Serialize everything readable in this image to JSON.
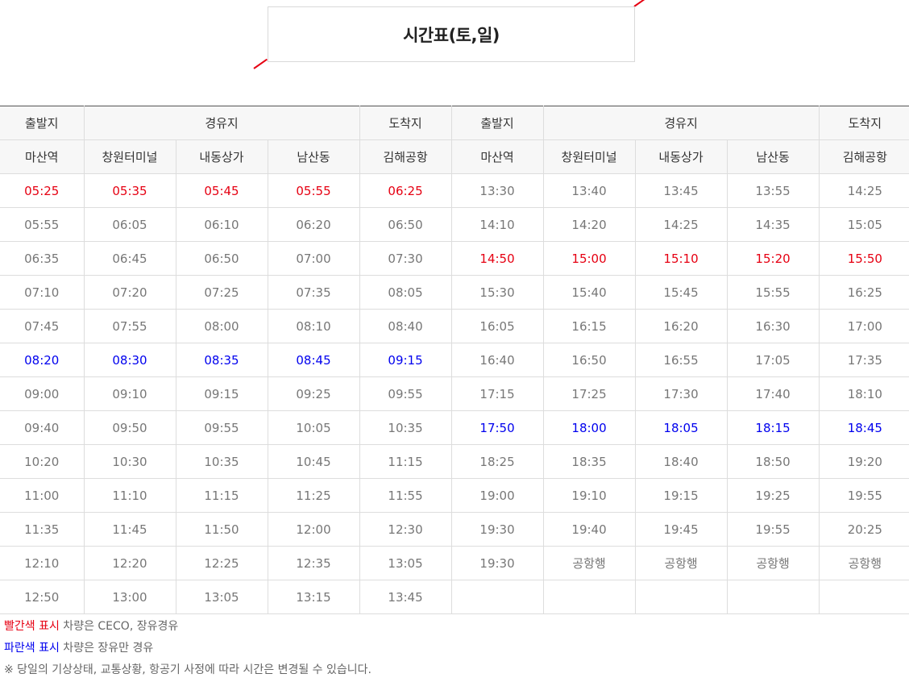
{
  "title": "시간표(토,일)",
  "colors": {
    "red": "#e60012",
    "blue": "#0000ee",
    "text": "#777777"
  },
  "header": {
    "left": {
      "departure": "출발지",
      "via": "경유지",
      "arrival": "도착지"
    },
    "right": {
      "departure": "출발지",
      "via": "경유지",
      "arrival": "도착지"
    },
    "stops_left": [
      "마산역",
      "창원터미널",
      "내동상가",
      "남산동",
      "김해공항"
    ],
    "stops_right": [
      "마산역",
      "창원터미널",
      "내동상가",
      "남산동",
      "김해공항"
    ]
  },
  "rows": [
    {
      "left": [
        "05:25",
        "05:35",
        "05:45",
        "05:55",
        "06:25"
      ],
      "left_color": "red",
      "right": [
        "13:30",
        "13:40",
        "13:45",
        "13:55",
        "14:25"
      ],
      "right_color": ""
    },
    {
      "left": [
        "05:55",
        "06:05",
        "06:10",
        "06:20",
        "06:50"
      ],
      "left_color": "",
      "right": [
        "14:10",
        "14:20",
        "14:25",
        "14:35",
        "15:05"
      ],
      "right_color": ""
    },
    {
      "left": [
        "06:35",
        "06:45",
        "06:50",
        "07:00",
        "07:30"
      ],
      "left_color": "",
      "right": [
        "14:50",
        "15:00",
        "15:10",
        "15:20",
        "15:50"
      ],
      "right_color": "red"
    },
    {
      "left": [
        "07:10",
        "07:20",
        "07:25",
        "07:35",
        "08:05"
      ],
      "left_color": "",
      "right": [
        "15:30",
        "15:40",
        "15:45",
        "15:55",
        "16:25"
      ],
      "right_color": ""
    },
    {
      "left": [
        "07:45",
        "07:55",
        "08:00",
        "08:10",
        "08:40"
      ],
      "left_color": "",
      "right": [
        "16:05",
        "16:15",
        "16:20",
        "16:30",
        "17:00"
      ],
      "right_color": ""
    },
    {
      "left": [
        "08:20",
        "08:30",
        "08:35",
        "08:45",
        "09:15"
      ],
      "left_color": "blue",
      "right": [
        "16:40",
        "16:50",
        "16:55",
        "17:05",
        "17:35"
      ],
      "right_color": ""
    },
    {
      "left": [
        "09:00",
        "09:10",
        "09:15",
        "09:25",
        "09:55"
      ],
      "left_color": "",
      "right": [
        "17:15",
        "17:25",
        "17:30",
        "17:40",
        "18:10"
      ],
      "right_color": ""
    },
    {
      "left": [
        "09:40",
        "09:50",
        "09:55",
        "10:05",
        "10:35"
      ],
      "left_color": "",
      "right": [
        "17:50",
        "18:00",
        "18:05",
        "18:15",
        "18:45"
      ],
      "right_color": "blue"
    },
    {
      "left": [
        "10:20",
        "10:30",
        "10:35",
        "10:45",
        "11:15"
      ],
      "left_color": "",
      "right": [
        "18:25",
        "18:35",
        "18:40",
        "18:50",
        "19:20"
      ],
      "right_color": ""
    },
    {
      "left": [
        "11:00",
        "11:10",
        "11:15",
        "11:25",
        "11:55"
      ],
      "left_color": "",
      "right": [
        "19:00",
        "19:10",
        "19:15",
        "19:25",
        "19:55"
      ],
      "right_color": ""
    },
    {
      "left": [
        "11:35",
        "11:45",
        "11:50",
        "12:00",
        "12:30"
      ],
      "left_color": "",
      "right": [
        "19:30",
        "19:40",
        "19:45",
        "19:55",
        "20:25"
      ],
      "right_color": ""
    },
    {
      "left": [
        "12:10",
        "12:20",
        "12:25",
        "12:35",
        "13:05"
      ],
      "left_color": "",
      "right": [
        "19:30",
        "공항행",
        "공항행",
        "공항행",
        "공항행"
      ],
      "right_color": ""
    },
    {
      "left": [
        "12:50",
        "13:00",
        "13:05",
        "13:15",
        "13:45"
      ],
      "left_color": "",
      "right": [
        "",
        "",
        "",
        "",
        ""
      ],
      "right_color": ""
    }
  ],
  "notes": [
    {
      "highlight": "빨간색 표시",
      "color": "red",
      "text": " 차량은 CECO, 장유경유"
    },
    {
      "highlight": "파란색 표시",
      "color": "blue",
      "text": " 차량은 장유만 경유"
    },
    {
      "highlight": "",
      "color": "",
      "text": "※ 당일의 기상상태, 교통상황, 항공기 사정에 따라 시간은 변경될 수 있습니다."
    }
  ]
}
